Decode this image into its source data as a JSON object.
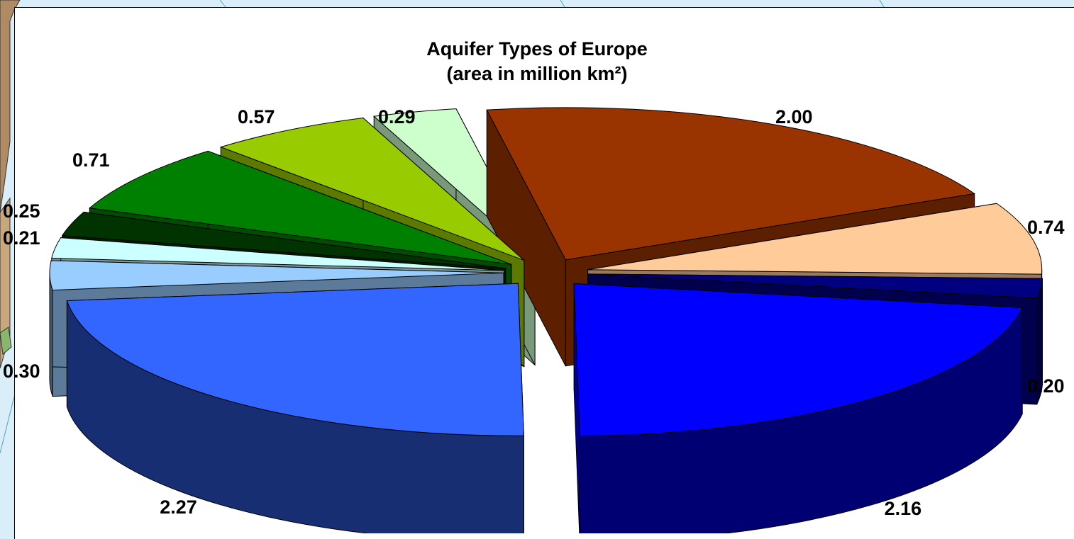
{
  "chart_data": {
    "type": "pie",
    "style": "3d-exploded",
    "title": "Aquifer Types of Europe",
    "subtitle": "(area in million km²)",
    "slices": [
      {
        "value": 2.0,
        "label": "2.00",
        "color": "#993300"
      },
      {
        "value": 0.74,
        "label": "0.74",
        "color": "#ffcc99"
      },
      {
        "value": 0.2,
        "label": "0.20",
        "color": "#000080"
      },
      {
        "value": 2.16,
        "label": "2.16",
        "color": "#0000ff"
      },
      {
        "value": 2.27,
        "label": "2.27",
        "color": "#3366ff"
      },
      {
        "value": 0.3,
        "label": "0.30",
        "color": "#99ccff"
      },
      {
        "value": 0.21,
        "label": "0.21",
        "color": "#ccffff"
      },
      {
        "value": 0.25,
        "label": "0.25",
        "color": "#003300"
      },
      {
        "value": 0.71,
        "label": "0.71",
        "color": "#008000"
      },
      {
        "value": 0.57,
        "label": "0.57",
        "color": "#99cc00"
      },
      {
        "value": 0.29,
        "label": "0.29",
        "color": "#ccffcc"
      }
    ],
    "legend": "none"
  }
}
